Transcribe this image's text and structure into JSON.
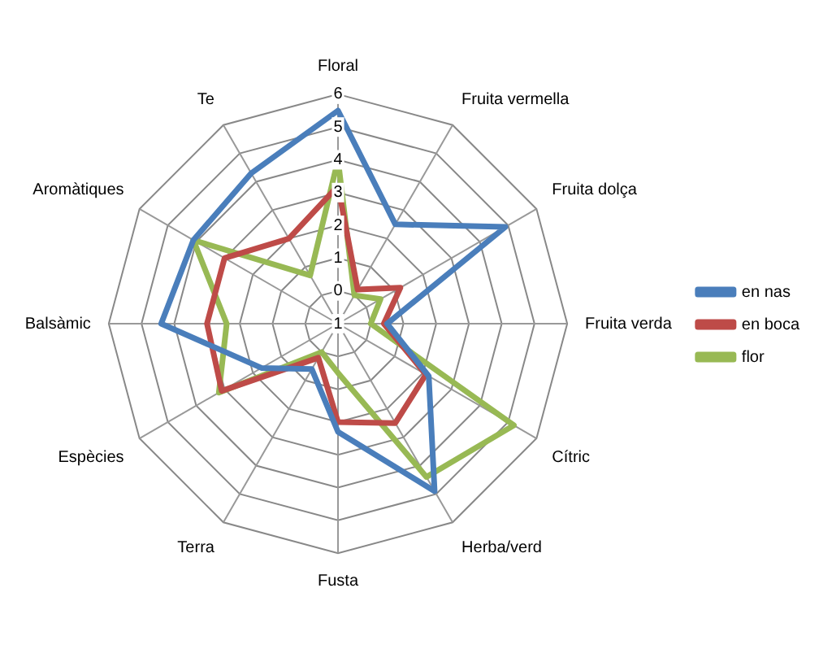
{
  "chart_data": {
    "type": "radar",
    "categories": [
      "Floral",
      "Fruita vermella",
      "Fruita dolça",
      "Fruita verda",
      "Cítric",
      "Herba/verd",
      "Fusta",
      "Terra",
      "Espècies",
      "Balsàmic",
      "Aromàtiques",
      "Te"
    ],
    "series": [
      {
        "name": "en nas",
        "color": "#4a7ebb",
        "values": [
          5.5,
          2.5,
          4.9,
          0.5,
          2.2,
          4.9,
          2.3,
          0.6,
          1.7,
          4.4,
          4.1,
          4.3
        ]
      },
      {
        "name": "en boca",
        "color": "#be4b48",
        "values": [
          3.2,
          0.2,
          1.2,
          0.4,
          2.1,
          2.5,
          2.0,
          0.2,
          3.1,
          3.0,
          3.0,
          2.0
        ]
      },
      {
        "name": "flor",
        "color": "#98b954",
        "values": [
          4,
          0,
          0.5,
          0,
          5.2,
          4.4,
          0.5,
          0,
          3.2,
          2.4,
          4.1,
          0.7
        ]
      }
    ],
    "ylim": [
      -1,
      6
    ],
    "yticks": [
      {
        "value": -1,
        "label": "1"
      },
      0,
      1,
      2,
      3,
      4,
      5,
      6
    ],
    "grid": true,
    "legend": "right",
    "marker": "none",
    "line_style": "solid"
  }
}
